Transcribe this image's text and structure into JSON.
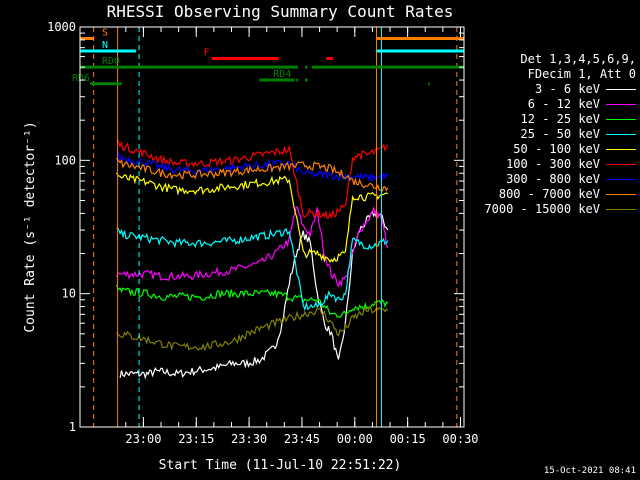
{
  "chart_data": {
    "type": "line",
    "title": "RHESSI Observing Summary Count Rates",
    "xlabel": "Start Time (11-Jul-10 22:51:22)",
    "ylabel": "Count Rate (s⁻¹ detector⁻¹)",
    "xlim": [
      -9.37,
      99.63
    ],
    "ylim": [
      1,
      1000
    ],
    "yscale": "log",
    "x_ticks": [
      {
        "value": 8.63,
        "label": "23:00"
      },
      {
        "value": 23.63,
        "label": "23:15"
      },
      {
        "value": 38.63,
        "label": "23:30"
      },
      {
        "value": 53.63,
        "label": "23:45"
      },
      {
        "value": 68.63,
        "label": "00:00"
      },
      {
        "value": 83.63,
        "label": "00:15"
      },
      {
        "value": 98.63,
        "label": "00:30"
      }
    ],
    "y_ticks": [
      {
        "value": 1,
        "label": "1"
      },
      {
        "value": 10,
        "label": "10"
      },
      {
        "value": 100,
        "label": "100"
      },
      {
        "value": 1000,
        "label": "1000"
      }
    ],
    "legend": {
      "header": [
        "Det 1,3,4,5,6,9,",
        "FDecim 1, Att 0"
      ],
      "placement": "right"
    },
    "series": [
      {
        "name": "3 - 6 keV",
        "color": "#ffffff",
        "x": [
          2,
          10,
          12,
          14,
          18,
          22,
          26,
          30,
          34,
          38,
          42,
          46,
          48,
          50,
          52,
          54,
          56,
          58,
          60,
          62,
          64,
          66,
          68,
          70,
          72,
          74,
          76,
          78
        ],
        "y": [
          2.5,
          2.5,
          2.6,
          2.6,
          2.5,
          2.6,
          2.7,
          2.8,
          3.0,
          3.0,
          3.2,
          4,
          6,
          12,
          20,
          28,
          24,
          10,
          6,
          5,
          3,
          6,
          20,
          30,
          35,
          40,
          38,
          30
        ]
      },
      {
        "name": "6 - 12 keV",
        "color": "#ff00ff",
        "x": [
          1,
          2,
          10,
          14,
          18,
          22,
          26,
          30,
          34,
          38,
          42,
          46,
          50,
          52,
          54,
          56,
          58,
          60,
          62,
          64,
          66,
          68,
          70,
          72,
          74,
          76,
          78
        ],
        "y": [
          14,
          14,
          14,
          13.5,
          13.5,
          13.5,
          14,
          14.5,
          15,
          16,
          17,
          20,
          25,
          45,
          32,
          28,
          42,
          20,
          14,
          12,
          13,
          20,
          30,
          35,
          42,
          38,
          22
        ]
      },
      {
        "name": "12 - 25 keV",
        "color": "#00ff00",
        "x": [
          1,
          2,
          10,
          14,
          18,
          22,
          26,
          30,
          34,
          38,
          42,
          46,
          50,
          54,
          58,
          60,
          62,
          64,
          66,
          68,
          70,
          72,
          74,
          76,
          78
        ],
        "y": [
          11,
          10.5,
          10,
          9.5,
          9.5,
          9.5,
          9.5,
          10,
          10,
          10,
          10,
          10,
          9.5,
          9,
          9,
          8,
          7,
          7,
          7,
          8,
          8,
          8,
          8.5,
          8.5,
          8.5
        ]
      },
      {
        "name": "25 - 50 keV",
        "color": "#00ffff",
        "x": [
          1,
          2,
          10,
          14,
          18,
          22,
          26,
          30,
          34,
          38,
          42,
          46,
          50,
          54,
          58,
          60,
          62,
          64,
          66,
          68,
          70,
          72,
          74,
          76,
          78
        ],
        "y": [
          30,
          28,
          26,
          25,
          24,
          24,
          24,
          24.5,
          25,
          26,
          27,
          28,
          30,
          8,
          8,
          9,
          10,
          9,
          10,
          25,
          24,
          23,
          23,
          24,
          25
        ]
      },
      {
        "name": "50 - 100 keV",
        "color": "#ffff00",
        "x": [
          1,
          2,
          10,
          14,
          18,
          22,
          26,
          30,
          34,
          38,
          42,
          46,
          50,
          54,
          58,
          60,
          62,
          64,
          66,
          68,
          70,
          72,
          74,
          76,
          78
        ],
        "y": [
          80,
          75,
          68,
          63,
          60,
          60,
          60,
          62,
          64,
          66,
          68,
          70,
          72,
          20,
          20,
          19,
          18,
          19,
          20,
          54,
          54,
          53,
          54,
          55,
          56
        ]
      },
      {
        "name": "100 - 300 keV",
        "color": "#ff0000",
        "x": [
          1,
          2,
          10,
          14,
          18,
          22,
          26,
          30,
          34,
          38,
          42,
          46,
          50,
          54,
          58,
          60,
          62,
          64,
          66,
          68,
          70,
          72,
          74,
          76,
          78
        ],
        "y": [
          140,
          130,
          110,
          100,
          95,
          95,
          95,
          98,
          100,
          105,
          110,
          115,
          120,
          40,
          40,
          39,
          38,
          42,
          45,
          105,
          110,
          110,
          115,
          120,
          130
        ]
      },
      {
        "name": "300 - 800 keV",
        "color": "#0000ff",
        "x": [
          1,
          2,
          10,
          14,
          18,
          22,
          26,
          30,
          34,
          38,
          42,
          46,
          50,
          54,
          58,
          60,
          62,
          64,
          66,
          68,
          70,
          72,
          74,
          76,
          78
        ],
        "y": [
          110,
          105,
          95,
          88,
          85,
          83,
          84,
          86,
          88,
          90,
          92,
          94,
          95,
          80,
          78,
          78,
          77,
          76,
          76,
          76,
          75,
          74,
          74,
          75,
          76
        ]
      },
      {
        "name": "800 - 7000 keV",
        "color": "#ff8000",
        "x": [
          1,
          2,
          10,
          14,
          18,
          22,
          26,
          30,
          34,
          38,
          42,
          46,
          50,
          54,
          58,
          60,
          62,
          64,
          66,
          68,
          70,
          72,
          74,
          76,
          78
        ],
        "y": [
          100,
          95,
          85,
          80,
          78,
          78,
          79,
          80,
          82,
          84,
          86,
          88,
          90,
          92,
          90,
          88,
          86,
          80,
          78,
          70,
          68,
          66,
          64,
          63,
          62
        ]
      },
      {
        "name": "7000 - 15000 keV",
        "color": "#808000",
        "x": [
          1,
          2,
          10,
          14,
          18,
          22,
          26,
          30,
          34,
          38,
          42,
          46,
          50,
          54,
          58,
          60,
          62,
          64,
          66,
          68,
          70,
          72,
          74,
          76,
          78
        ],
        "y": [
          5,
          5,
          4.5,
          4.2,
          4.0,
          4.0,
          4.0,
          4.2,
          4.4,
          5,
          5.5,
          6,
          6.5,
          7,
          7.5,
          7,
          6,
          5,
          5.5,
          6.5,
          7,
          7.5,
          7.5,
          7.5,
          7.5
        ]
      }
    ],
    "flags": [
      {
        "label": "S",
        "color": "#ff8000",
        "level": 820,
        "segments": [
          [
            -9.37,
            -5.5
          ],
          [
            74.8,
            99.63
          ]
        ]
      },
      {
        "label": "N",
        "color": "#00ffff",
        "level": 660,
        "segments": [
          [
            -9.37,
            6.5
          ],
          [
            74.8,
            99.63
          ]
        ]
      },
      {
        "label": "F",
        "color": "#ff0000",
        "level": 580,
        "segments": [
          [
            28,
            47
          ],
          [
            60.5,
            62.5
          ]
        ]
      },
      {
        "label": "RD0",
        "color": "#008000",
        "level": 500,
        "segments": [
          [
            -9.37,
            52.5
          ],
          [
            54.5,
            55.2
          ],
          [
            56.5,
            99.63
          ]
        ]
      },
      {
        "label": "RD4",
        "color": "#008000",
        "level": 400,
        "segments": [
          [
            41.5,
            51.5
          ],
          [
            52,
            52.6
          ],
          [
            54.5,
            55.2
          ]
        ]
      },
      {
        "label": "RD6",
        "color": "#008000",
        "level": 375,
        "segments": [
          [
            -6.5,
            2.5
          ],
          [
            89.5,
            89.9
          ]
        ]
      }
    ],
    "vlines": [
      {
        "x": -5.5,
        "color": "#ff8000",
        "style": "dashed"
      },
      {
        "x": 1.3,
        "color": "#ff8000",
        "style": "solid"
      },
      {
        "x": 7.4,
        "color": "#00ffff",
        "style": "dashed"
      },
      {
        "x": 74.8,
        "color": "#ff8000",
        "style": "solid"
      },
      {
        "x": 76.2,
        "color": "#00ffff",
        "style": "solid"
      },
      {
        "x": 97.6,
        "color": "#ff8000",
        "style": "dashed"
      }
    ]
  },
  "footer": {
    "date": "15-Oct-2021 08:41"
  }
}
